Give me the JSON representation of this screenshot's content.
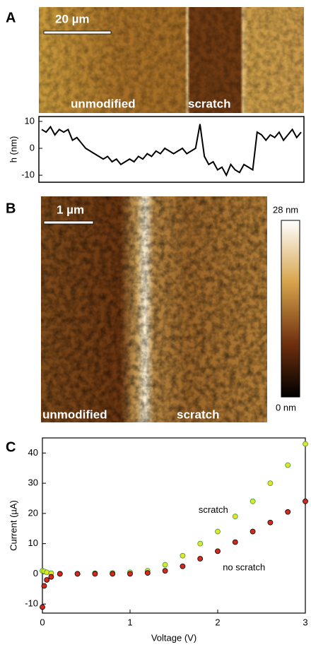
{
  "panels": {
    "a": {
      "letter": "A",
      "scale_bar": "20 µm",
      "left_label": "unmodified",
      "right_label": "scratch"
    },
    "b": {
      "letter": "B",
      "scale_bar": "1 µm",
      "left_label": "unmodified",
      "right_label": "scratch",
      "colorbar_max": "28 nm",
      "colorbar_min": "0 nm"
    },
    "c": {
      "letter": "C"
    }
  },
  "chart_data": [
    {
      "type": "line",
      "y_label": "h (nm)",
      "color": "#000000",
      "values": [
        7,
        6,
        8,
        5,
        7,
        6,
        7,
        3,
        4,
        2,
        0,
        -1,
        -2,
        -3,
        -4,
        -3,
        -5,
        -4,
        -6,
        -5,
        -4,
        -5,
        -3,
        -4,
        -2,
        -3,
        -1,
        -2,
        0,
        -1,
        -2,
        -1,
        0,
        -2,
        -1,
        0,
        9,
        -3,
        -6,
        -5,
        -8,
        -7,
        -10,
        -6,
        -8,
        -9,
        -6,
        -7,
        -8,
        6,
        5,
        3,
        5,
        4,
        6,
        3,
        5,
        7,
        4,
        6
      ],
      "ylim": [
        -12.6,
        11.8
      ],
      "yticks": [
        10,
        0,
        -10
      ]
    },
    {
      "type": "scatter",
      "x_label": "Voltage (V)",
      "y_label": "Current (µA)",
      "x": [
        0,
        0.02,
        0.05,
        0.1,
        0.2,
        0.4,
        0.6,
        0.8,
        1.0,
        1.2,
        1.4,
        1.6,
        1.8,
        2.0,
        2.2,
        2.4,
        2.6,
        2.8,
        3.0
      ],
      "series": [
        {
          "name": "scratch",
          "color": "#e3e32a",
          "values": [
            1,
            0.8,
            0.5,
            0.2,
            0,
            0,
            0.2,
            0.3,
            0.5,
            1,
            3,
            6,
            10,
            14,
            19,
            24,
            30,
            36,
            43
          ]
        },
        {
          "name": "no scratch",
          "color": "#d42a1e",
          "values": [
            -11,
            -4,
            -2,
            -1,
            0,
            0,
            0,
            0,
            0,
            0.3,
            1,
            2.5,
            5,
            7.5,
            10.5,
            14,
            17,
            20.5,
            24
          ]
        }
      ],
      "xlim": [
        0,
        3
      ],
      "ylim": [
        -13,
        45
      ],
      "xticks": [
        0,
        1,
        2,
        3
      ],
      "yticks": [
        -10,
        0,
        10,
        20,
        30,
        40
      ]
    }
  ]
}
